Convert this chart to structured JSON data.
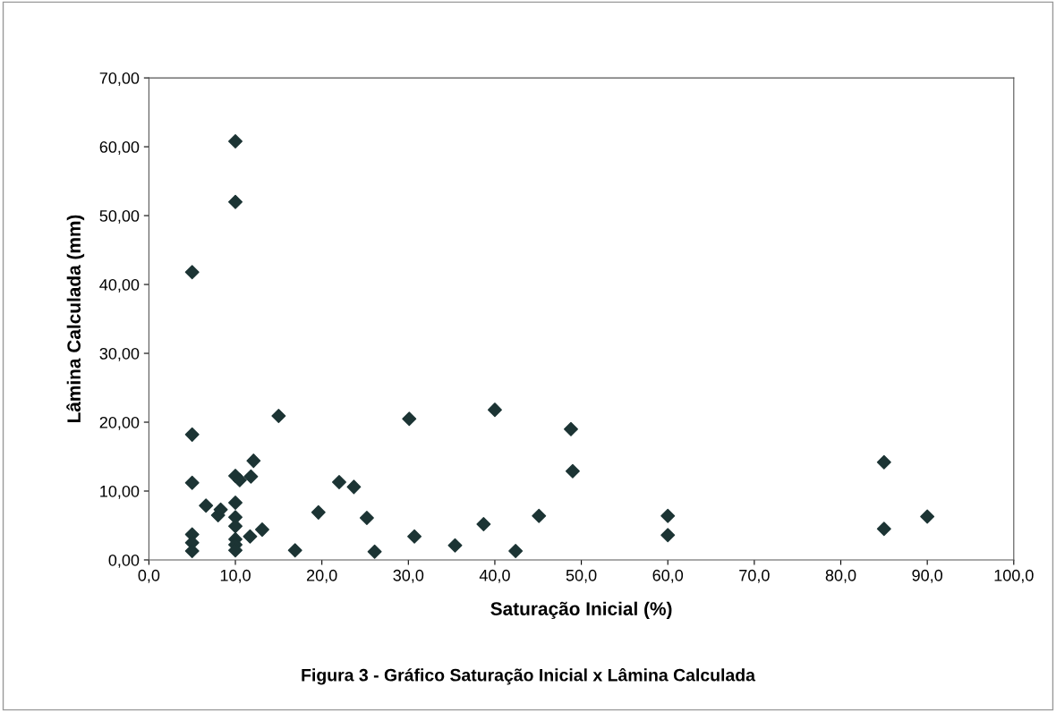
{
  "chart_data": {
    "type": "scatter",
    "xlabel": "Saturação Inicial (%)",
    "ylabel": "Lâmina Calculada (mm)",
    "annotations": [
      "Figura 3 - Gráfico Saturação Inicial x Lâmina Calculada"
    ],
    "xlim": [
      0,
      100
    ],
    "ylim": [
      0,
      70
    ],
    "xticks": [
      {
        "value": 0,
        "label": "0,0"
      },
      {
        "value": 10,
        "label": "10,0"
      },
      {
        "value": 20,
        "label": "20,0"
      },
      {
        "value": 30,
        "label": "30,0"
      },
      {
        "value": 40,
        "label": "40,0"
      },
      {
        "value": 50,
        "label": "50,0"
      },
      {
        "value": 60,
        "label": "60,0"
      },
      {
        "value": 70,
        "label": "70,0"
      },
      {
        "value": 80,
        "label": "80,0"
      },
      {
        "value": 90,
        "label": "90,0"
      },
      {
        "value": 100,
        "label": "100,0"
      }
    ],
    "yticks": [
      {
        "value": 0,
        "label": "0,00"
      },
      {
        "value": 10,
        "label": "10,00"
      },
      {
        "value": 20,
        "label": "20,00"
      },
      {
        "value": 30,
        "label": "30,00"
      },
      {
        "value": 40,
        "label": "40,00"
      },
      {
        "value": 50,
        "label": "50,00"
      },
      {
        "value": 60,
        "label": "60,00"
      },
      {
        "value": 70,
        "label": "70,00"
      }
    ],
    "grid": false,
    "legend": false,
    "marker": "diamond",
    "series": [
      {
        "color": "#1c3434",
        "x": [
          5,
          10,
          10,
          5,
          5,
          5,
          5,
          5,
          6.6,
          8.0,
          8.3,
          10,
          10.5,
          11.8,
          12.1,
          10,
          10,
          10,
          10,
          10,
          10,
          11.7,
          13.1,
          15,
          16.9,
          19.6,
          22,
          23.7,
          25.2,
          26.1,
          30.1,
          30.7,
          35.4,
          38.7,
          40.0,
          42.4,
          45.1,
          48.8,
          49.0,
          60,
          60,
          85,
          85,
          90
        ],
        "values": [
          41.8,
          60.8,
          52,
          18.2,
          11.2,
          3.7,
          2.5,
          1.3,
          7.9,
          6.5,
          7.3,
          12.2,
          11.6,
          12.1,
          14.4,
          8.3,
          6.2,
          4.9,
          3.0,
          2.2,
          1.4,
          3.4,
          4.4,
          20.9,
          1.4,
          6.9,
          11.3,
          10.6,
          6.1,
          1.2,
          20.5,
          3.4,
          2.1,
          5.2,
          21.8,
          1.3,
          6.4,
          19.0,
          12.9,
          6.4,
          3.6,
          14.2,
          4.5,
          6.3
        ]
      }
    ]
  }
}
